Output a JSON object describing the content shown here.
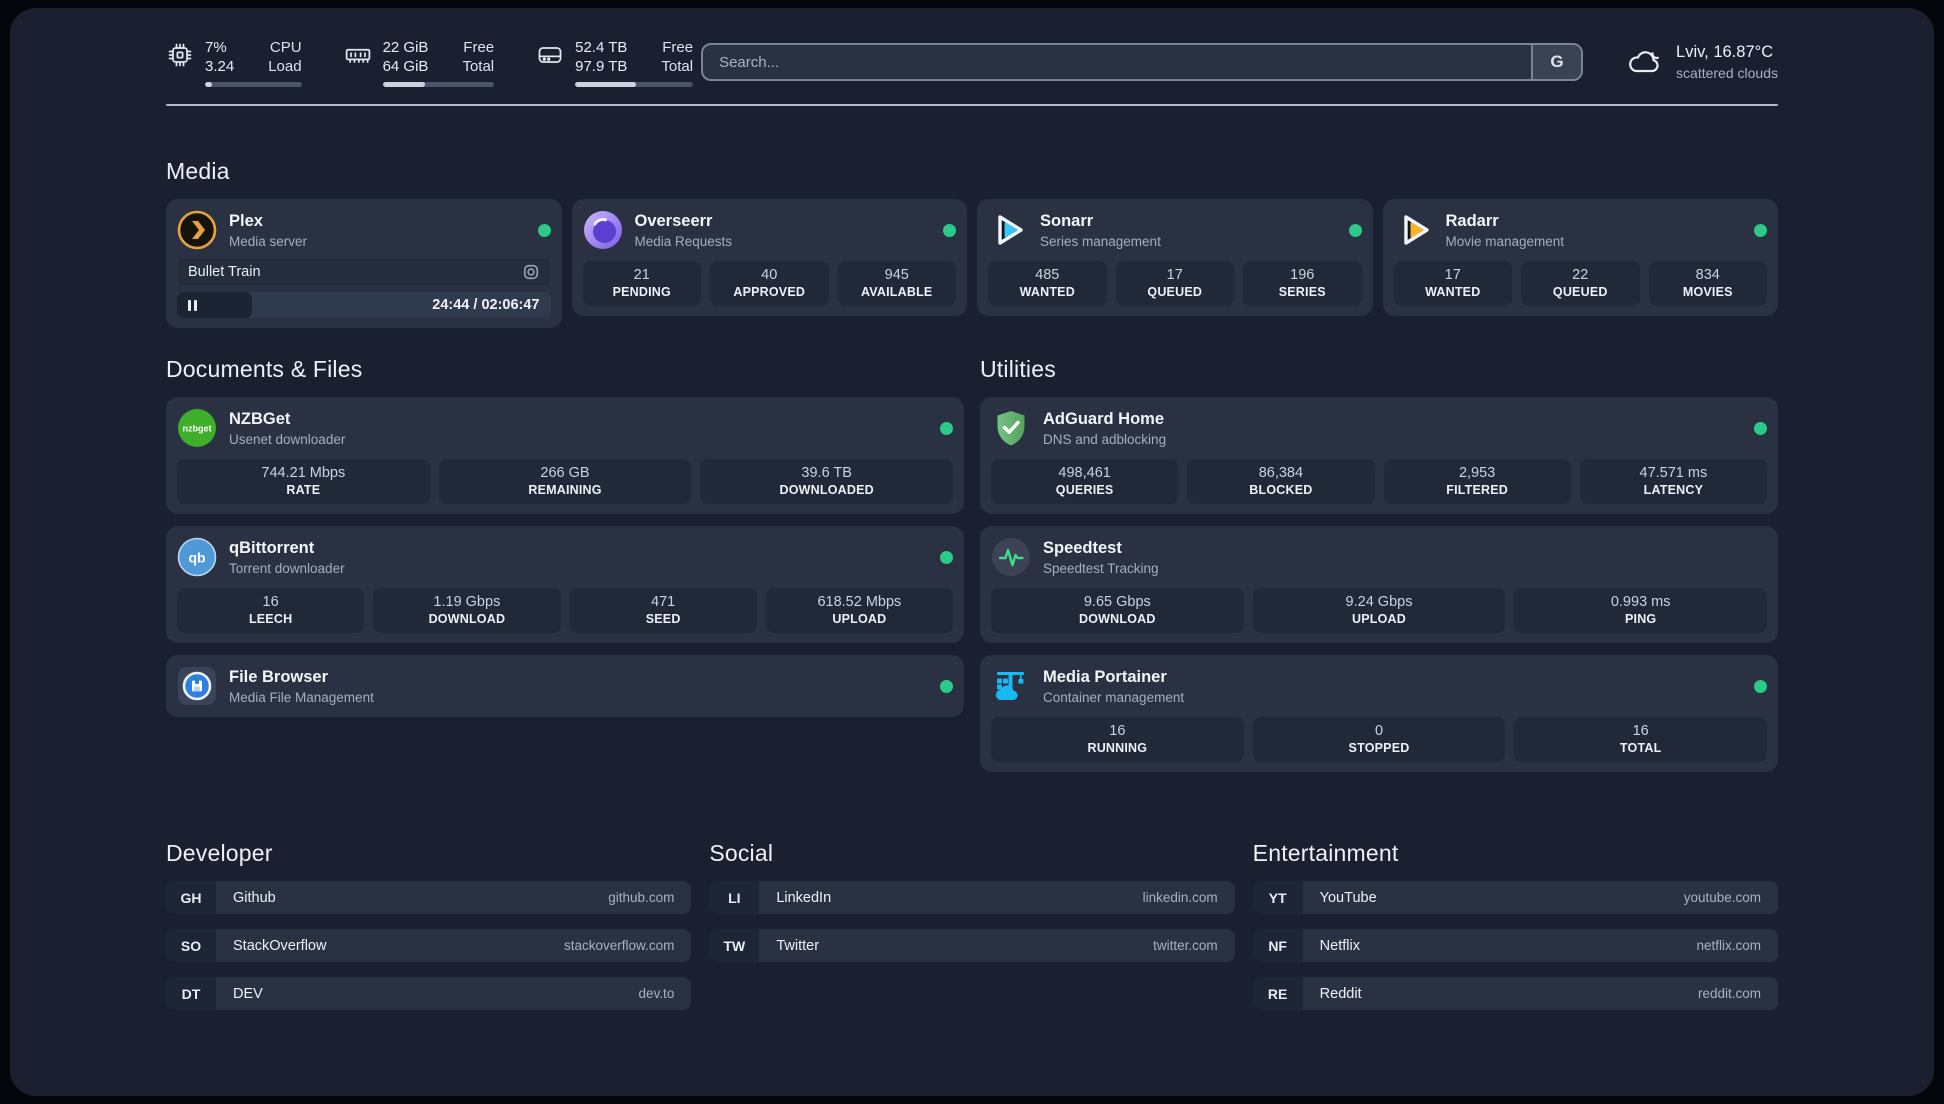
{
  "header": {
    "cpu": {
      "values": [
        "7%",
        "3.24"
      ],
      "labels": [
        "CPU",
        "Load"
      ],
      "progress_pct": 7
    },
    "memory": {
      "values": [
        "22 GiB",
        "64 GiB"
      ],
      "labels": [
        "Free",
        "Total"
      ],
      "progress_pct": 38
    },
    "disk": {
      "values": [
        "52.4 TB",
        "97.9 TB"
      ],
      "labels": [
        "Free",
        "Total"
      ],
      "progress_pct": 52
    },
    "search": {
      "placeholder": "Search...",
      "provider": "G"
    },
    "weather": {
      "location": "Lviv, 16.87°C",
      "condition": "scattered clouds"
    }
  },
  "media": {
    "heading": "Media",
    "plex": {
      "name": "Plex",
      "desc": "Media server",
      "now_playing": "Bullet Train",
      "time": "24:44 / 02:06:47",
      "progress_pct": 20
    },
    "overseerr": {
      "name": "Overseerr",
      "desc": "Media Requests",
      "stats": [
        {
          "value": "21",
          "label": "PENDING"
        },
        {
          "value": "40",
          "label": "APPROVED"
        },
        {
          "value": "945",
          "label": "AVAILABLE"
        }
      ]
    },
    "sonarr": {
      "name": "Sonarr",
      "desc": "Series management",
      "stats": [
        {
          "value": "485",
          "label": "WANTED"
        },
        {
          "value": "17",
          "label": "QUEUED"
        },
        {
          "value": "196",
          "label": "SERIES"
        }
      ]
    },
    "radarr": {
      "name": "Radarr",
      "desc": "Movie management",
      "stats": [
        {
          "value": "17",
          "label": "WANTED"
        },
        {
          "value": "22",
          "label": "QUEUED"
        },
        {
          "value": "834",
          "label": "MOVIES"
        }
      ]
    }
  },
  "documents": {
    "heading": "Documents & Files",
    "nzbget": {
      "name": "NZBGet",
      "desc": "Usenet downloader",
      "icon_text": "nzbget",
      "stats": [
        {
          "value": "744.21 Mbps",
          "label": "RATE"
        },
        {
          "value": "266 GB",
          "label": "REMAINING"
        },
        {
          "value": "39.6 TB",
          "label": "DOWNLOADED"
        }
      ]
    },
    "qbittorrent": {
      "name": "qBittorrent",
      "desc": "Torrent downloader",
      "icon_text": "qb",
      "stats": [
        {
          "value": "16",
          "label": "LEECH"
        },
        {
          "value": "1.19 Gbps",
          "label": "DOWNLOAD"
        },
        {
          "value": "471",
          "label": "SEED"
        },
        {
          "value": "618.52 Mbps",
          "label": "UPLOAD"
        }
      ]
    },
    "filebrowser": {
      "name": "File Browser",
      "desc": "Media File Management"
    }
  },
  "utilities": {
    "heading": "Utilities",
    "adguard": {
      "name": "AdGuard Home",
      "desc": "DNS and adblocking",
      "stats": [
        {
          "value": "498,461",
          "label": "QUERIES"
        },
        {
          "value": "86,384",
          "label": "BLOCKED"
        },
        {
          "value": "2,953",
          "label": "FILTERED"
        },
        {
          "value": "47.571 ms",
          "label": "LATENCY"
        }
      ]
    },
    "speedtest": {
      "name": "Speedtest",
      "desc": "Speedtest Tracking",
      "stats": [
        {
          "value": "9.65 Gbps",
          "label": "DOWNLOAD"
        },
        {
          "value": "9.24 Gbps",
          "label": "UPLOAD"
        },
        {
          "value": "0.993 ms",
          "label": "PING"
        }
      ]
    },
    "portainer": {
      "name": "Media Portainer",
      "desc": "Container management",
      "stats": [
        {
          "value": "16",
          "label": "RUNNING"
        },
        {
          "value": "0",
          "label": "STOPPED"
        },
        {
          "value": "16",
          "label": "TOTAL"
        }
      ]
    }
  },
  "bookmarks": {
    "developer": {
      "heading": "Developer",
      "items": [
        {
          "abbr": "GH",
          "name": "Github",
          "domain": "github.com"
        },
        {
          "abbr": "SO",
          "name": "StackOverflow",
          "domain": "stackoverflow.com"
        },
        {
          "abbr": "DT",
          "name": "DEV",
          "domain": "dev.to"
        }
      ]
    },
    "social": {
      "heading": "Social",
      "items": [
        {
          "abbr": "LI",
          "name": "LinkedIn",
          "domain": "linkedin.com"
        },
        {
          "abbr": "TW",
          "name": "Twitter",
          "domain": "twitter.com"
        }
      ]
    },
    "entertainment": {
      "heading": "Entertainment",
      "items": [
        {
          "abbr": "YT",
          "name": "YouTube",
          "domain": "youtube.com"
        },
        {
          "abbr": "NF",
          "name": "Netflix",
          "domain": "netflix.com"
        },
        {
          "abbr": "RE",
          "name": "Reddit",
          "domain": "reddit.com"
        }
      ]
    }
  },
  "colors": {
    "status_online": "#2bc98a",
    "plex": "#e8a33d",
    "sonarr": "#38c6f4",
    "radarr": "#f7b529",
    "nzbget": "#3fae2a",
    "qbittorrent": "#4e9ad8",
    "adguard": "#67b279",
    "speedtest": "#3ddc8e",
    "portainer": "#19b9f2",
    "filebrowser": "#2d7fe0"
  }
}
